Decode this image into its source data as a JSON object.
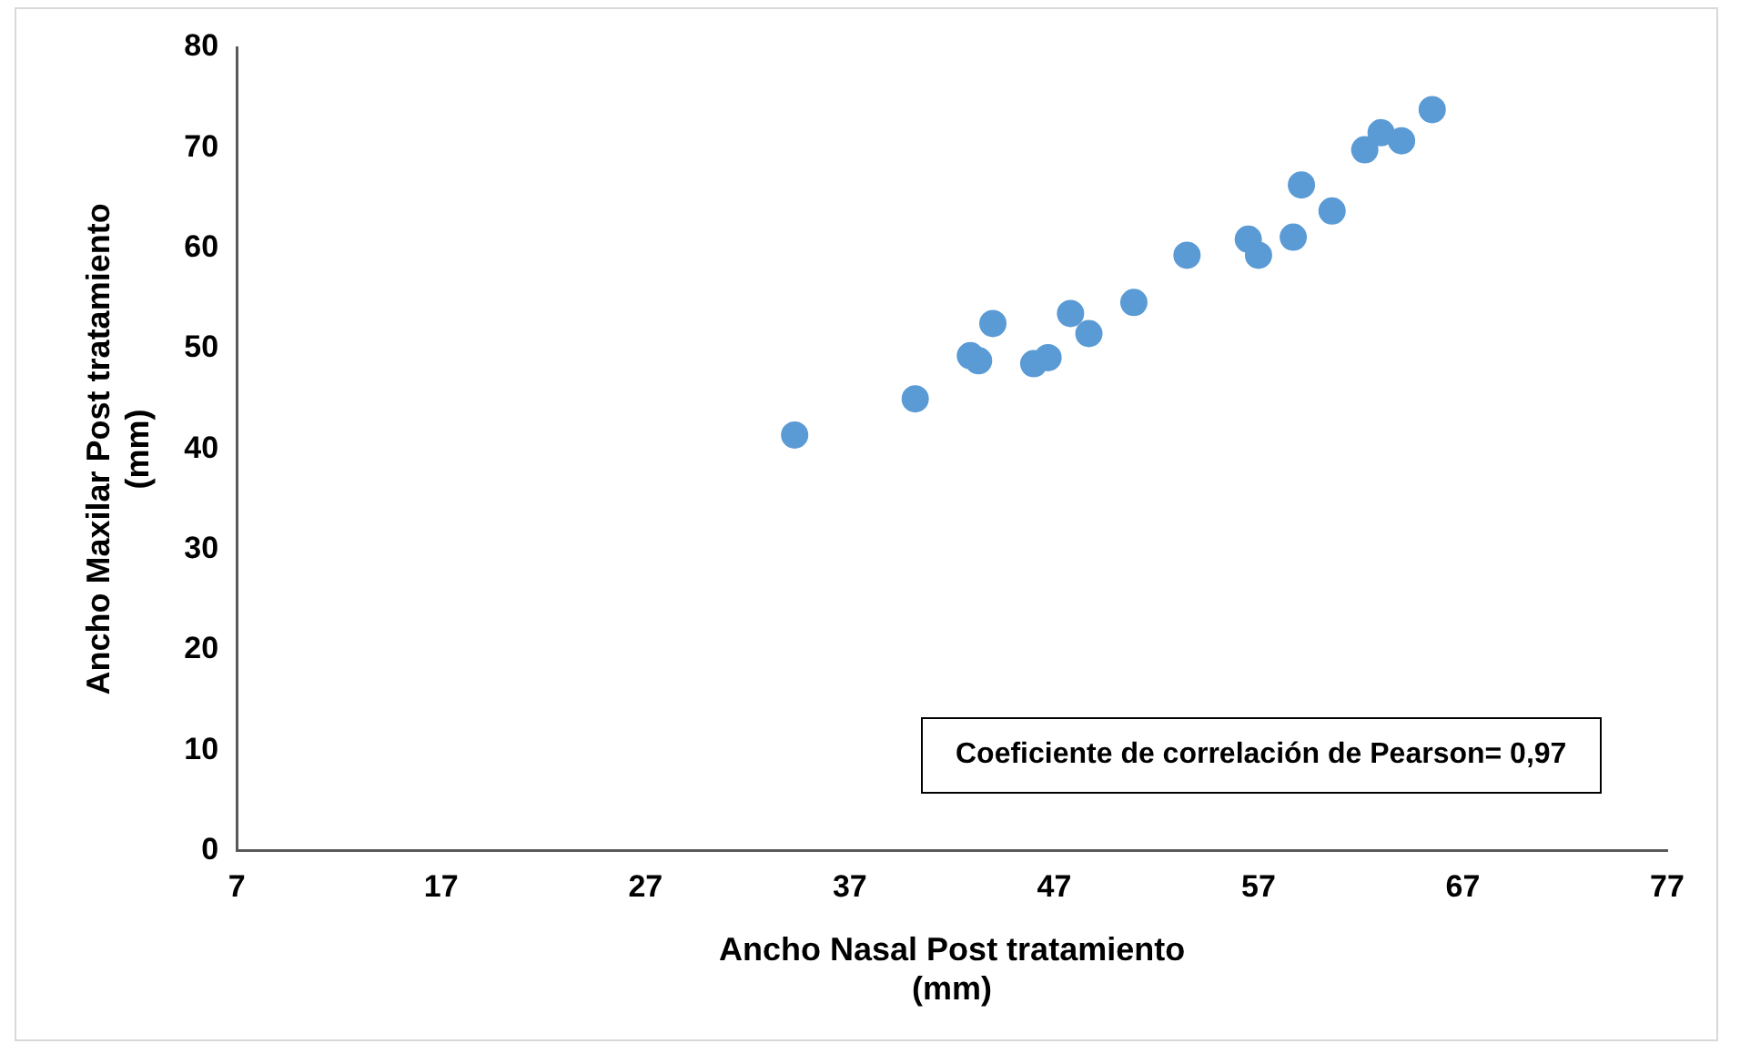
{
  "chart_data": {
    "type": "scatter",
    "xlabel": "Ancho Nasal Post tratamiento (mm)",
    "ylabel": "Ancho Maxilar Post tratamiento (mm)",
    "x": [
      34.3,
      40.2,
      42.9,
      43.3,
      44.0,
      46.0,
      46.7,
      47.8,
      48.7,
      50.9,
      53.5,
      56.5,
      57.0,
      58.7,
      59.1,
      60.6,
      62.2,
      63.0,
      64.0,
      65.5
    ],
    "series": [
      {
        "color": "#5b9bd5",
        "values": [
          41.4,
          45.0,
          49.3,
          48.8,
          52.5,
          48.5,
          49.1,
          53.5,
          51.5,
          54.6,
          59.3,
          60.9,
          59.3,
          61.1,
          66.3,
          63.7,
          69.8,
          71.5,
          70.7,
          73.8
        ]
      }
    ],
    "xlim": [
      7,
      77
    ],
    "xticks": [
      7,
      17,
      27,
      37,
      47,
      57,
      67,
      77
    ],
    "ylim": [
      0,
      80
    ],
    "yticks": [
      0,
      10,
      20,
      30,
      40,
      50,
      60,
      70,
      80
    ],
    "grid": false,
    "legend": false,
    "marker": "circle",
    "annotations": [
      "Coeficiente de correlación de Pearson= 0,97"
    ]
  }
}
